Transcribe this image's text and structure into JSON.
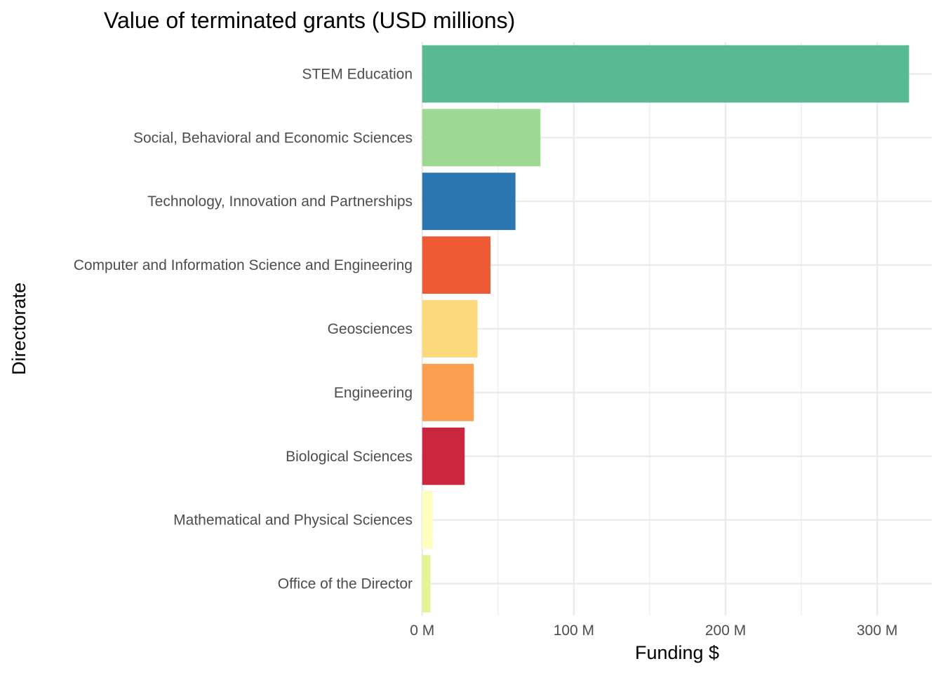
{
  "chart_data": {
    "type": "bar",
    "orientation": "horizontal",
    "title": "Value of terminated grants (USD millions)",
    "xlabel": "Funding $",
    "ylabel": "Directorate",
    "categories": [
      "STEM Education",
      "Social, Behavioral and Economic Sciences",
      "Technology, Innovation and Partnerships",
      "Computer and Information Science and Engineering",
      "Geosciences",
      "Engineering",
      "Biological Sciences",
      "Mathematical and Physical Sciences",
      "Office of the Director"
    ],
    "values": [
      321,
      78,
      61.5,
      45,
      36.5,
      34,
      28,
      7,
      5.5
    ],
    "colors": [
      "#57BA93",
      "#9DD993",
      "#2B76B0",
      "#EE5A36",
      "#FCD97B",
      "#FBA051",
      "#CA2640",
      "#FFFEBE",
      "#E5F394"
    ],
    "xlim": [
      -0.8,
      336
    ],
    "xticks": [
      0,
      100,
      200,
      300
    ],
    "xtick_labels": [
      "0 M",
      "100 M",
      "200 M",
      "300 M"
    ],
    "grid": true,
    "legend": "none"
  }
}
